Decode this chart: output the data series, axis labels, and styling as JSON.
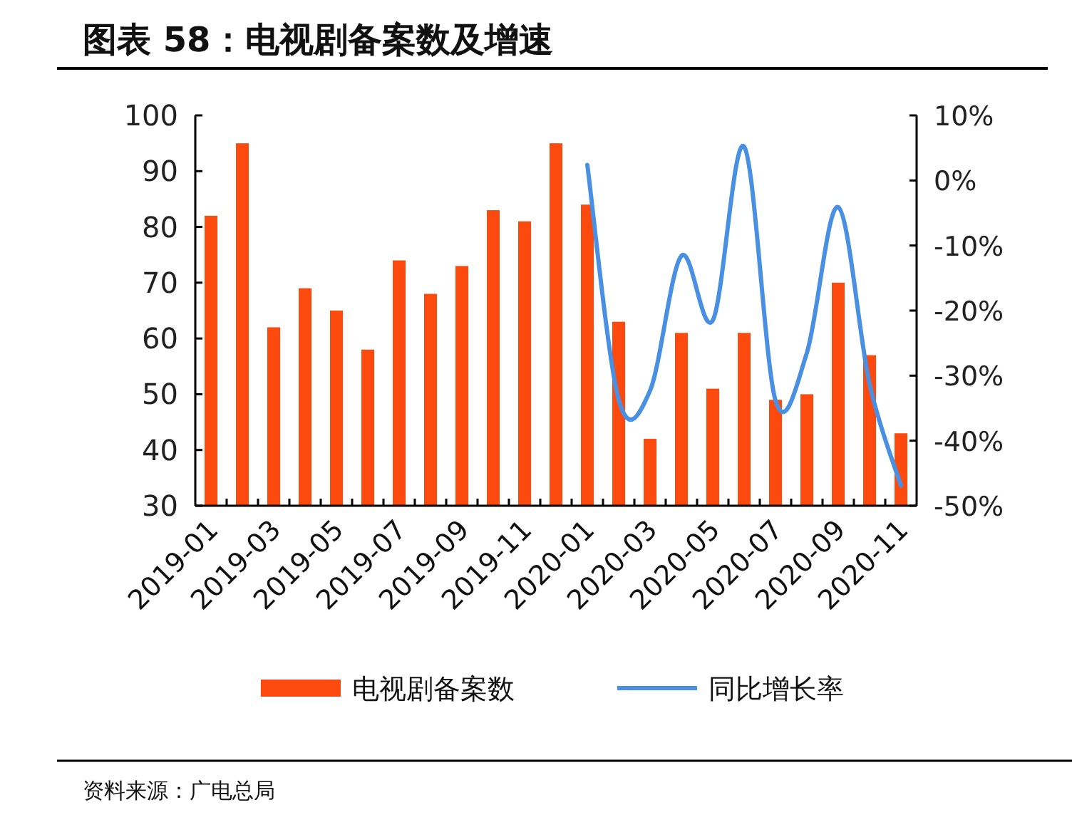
{
  "chart_data": {
    "type": "bar",
    "title": "图表 58：电视剧备案数及增速",
    "annotations": [
      "资料来源：广电总局"
    ],
    "categories": [
      "2019-01",
      null,
      "2019-03",
      null,
      "2019-05",
      null,
      "2019-07",
      null,
      "2019-09",
      null,
      "2019-11",
      null,
      "2020-01",
      null,
      "2020-03",
      null,
      "2020-05",
      null,
      "2020-07",
      null,
      "2020-09",
      null,
      "2020-11"
    ],
    "series": [
      {
        "name": "电视剧备案数",
        "color": "#fc4a0f",
        "values": [
          82,
          95,
          62,
          69,
          65,
          58,
          74,
          68,
          73,
          83,
          81,
          95,
          84,
          63,
          42,
          61,
          51,
          61,
          49,
          50,
          70,
          57,
          43
        ]
      },
      {
        "name": "同比增长率",
        "type": "line",
        "axis": "y2",
        "color": "#4a90e2",
        "values": [
          null,
          null,
          null,
          null,
          null,
          null,
          null,
          null,
          null,
          null,
          null,
          null,
          2.4,
          -33.7,
          -32.3,
          -11.6,
          -21.5,
          5.2,
          -33.8,
          -26.5,
          -4.1,
          -31.3,
          -46.9
        ]
      }
    ],
    "ylim": [
      30,
      100
    ],
    "yticks": [
      30,
      40,
      50,
      60,
      70,
      80,
      90,
      100
    ],
    "y2lim": [
      -50,
      10
    ],
    "y2ticks": [
      {
        "value": -50,
        "label": "-50%"
      },
      {
        "value": -40,
        "label": "-40%"
      },
      {
        "value": -30,
        "label": "-30%"
      },
      {
        "value": -20,
        "label": "-20%"
      },
      {
        "value": -10,
        "label": "-10%"
      },
      {
        "value": 0,
        "label": "0%"
      },
      {
        "value": 10,
        "label": "10%"
      }
    ],
    "legend": "bottom"
  }
}
